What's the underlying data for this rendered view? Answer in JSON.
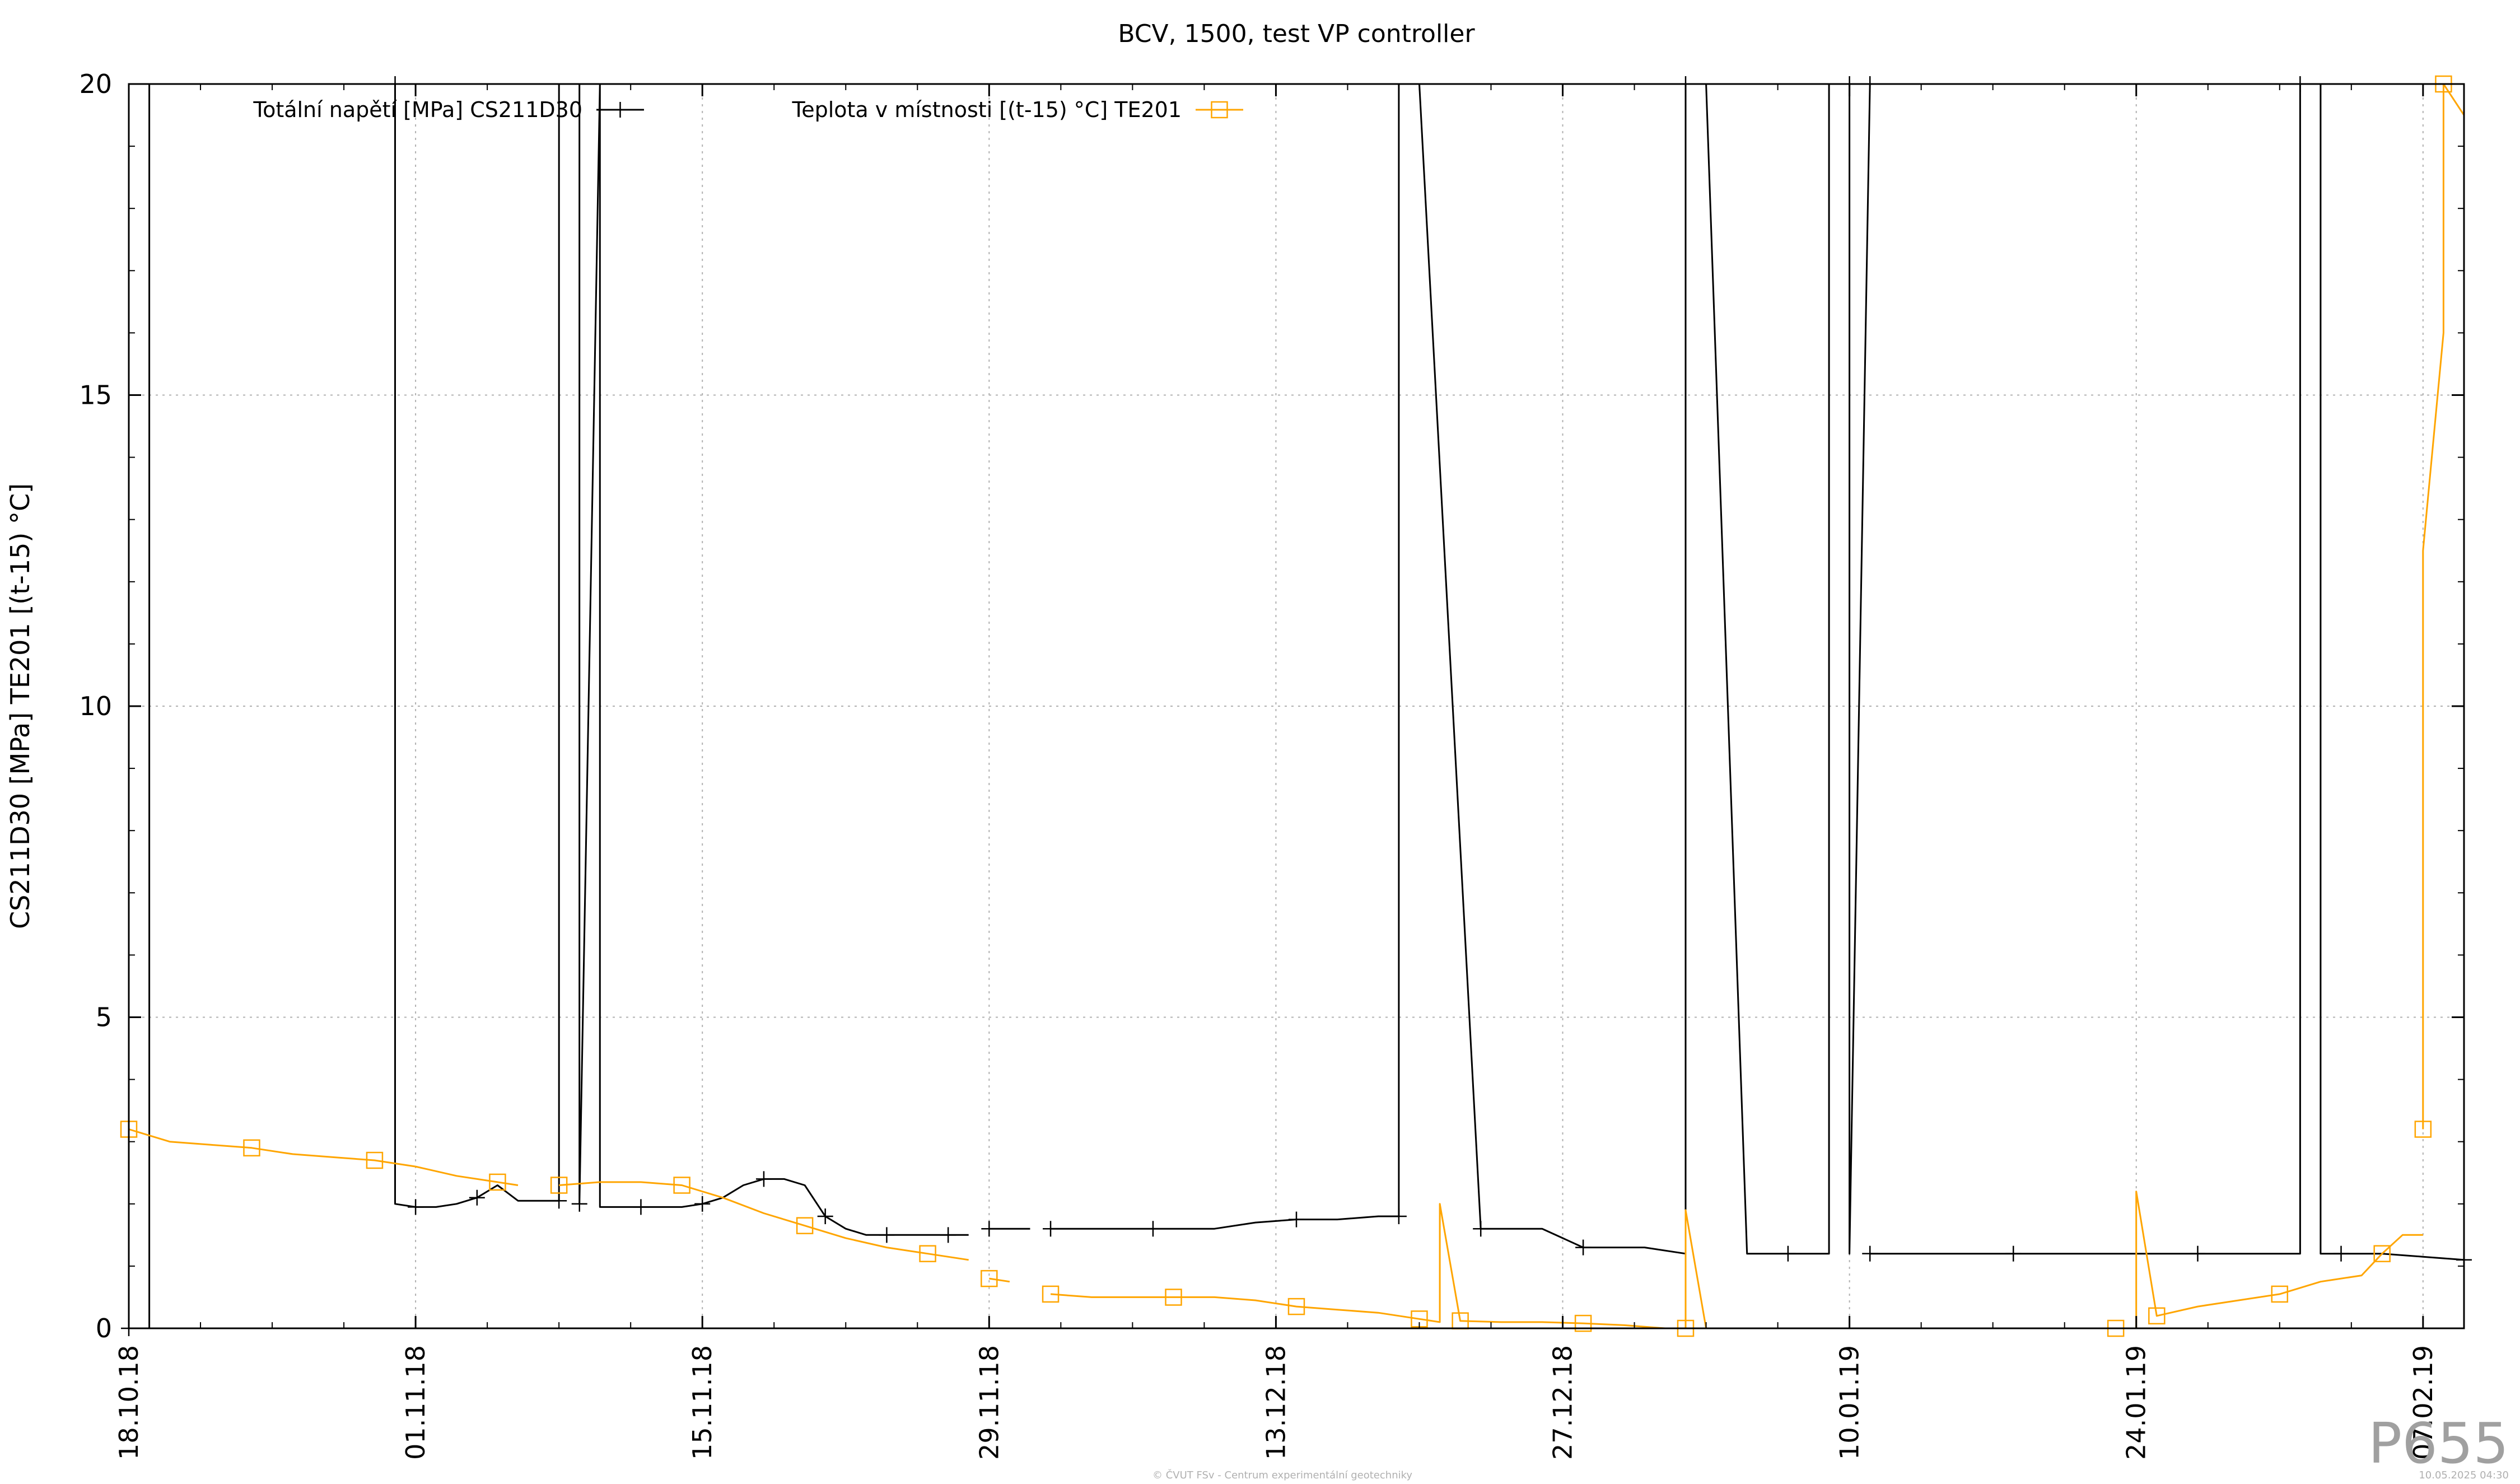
{
  "chart_data": {
    "type": "line",
    "title": "BCV, 1500, test VP controller",
    "ylabel": "CS211D30 [MPa] TE201 [(t-15) °C]",
    "xlabel": "",
    "ylim": [
      0,
      20
    ],
    "yticks": [
      0,
      5,
      10,
      15,
      20
    ],
    "xlim": [
      "2018-10-18",
      "2019-02-09"
    ],
    "xticks": [
      {
        "label": "18.10.18",
        "date": "2018-10-18"
      },
      {
        "label": "01.11.18",
        "date": "2018-11-01"
      },
      {
        "label": "15.11.18",
        "date": "2018-11-15"
      },
      {
        "label": "29.11.18",
        "date": "2018-11-29"
      },
      {
        "label": "13.12.18",
        "date": "2018-12-13"
      },
      {
        "label": "27.12.18",
        "date": "2018-12-27"
      },
      {
        "label": "10.01.19",
        "date": "2019-01-10"
      },
      {
        "label": "24.01.19",
        "date": "2019-01-24"
      },
      {
        "label": "07.02.19",
        "date": "2019-02-07"
      }
    ],
    "grid": true,
    "legend_position": "top",
    "series": [
      {
        "name": "Totální napětí [MPa] CS211D30",
        "color": "#000000",
        "marker": "plus",
        "x": [
          "2018-10-18",
          "2018-10-19",
          "2018-10-19",
          "2018-10-31",
          "2018-10-31",
          "2018-11-01",
          "2018-11-01",
          "2018-11-02",
          "2018-11-03",
          "2018-11-04",
          "2018-11-05",
          "2018-11-06",
          "2018-11-08",
          "2018-11-08",
          "2018-11-09",
          "2018-11-09",
          "2018-11-10",
          "2018-11-10",
          "2018-11-12",
          "2018-11-13",
          "2018-11-14",
          "2018-11-15",
          "2018-11-16",
          "2018-11-17",
          "2018-11-18",
          "2018-11-19",
          "2018-11-20",
          "2018-11-21",
          "2018-11-22",
          "2018-11-23",
          "2018-11-24",
          "2018-11-25",
          "2018-11-26",
          "2018-11-27",
          "2018-11-28"
        ],
        "values": [
          0,
          0,
          20,
          20,
          2.0,
          1.95,
          1.95,
          1.95,
          2.0,
          2.1,
          2.3,
          2.05,
          2.05,
          20,
          20,
          2.0,
          20,
          1.95,
          1.95,
          1.95,
          1.95,
          2.0,
          2.1,
          2.3,
          2.4,
          2.4,
          2.3,
          1.8,
          1.6,
          1.5,
          1.5,
          1.5,
          1.5,
          1.5,
          1.5
        ],
        "segments": [
          {
            "x": [
              "2018-11-29",
              "2018-11-30",
              "2018-12-01"
            ],
            "values": [
              1.6,
              1.6,
              1.6
            ]
          },
          {
            "x": [
              "2018-12-02",
              "2018-12-03",
              "2018-12-05",
              "2018-12-07",
              "2018-12-10",
              "2018-12-12",
              "2018-12-14",
              "2018-12-16",
              "2018-12-18",
              "2018-12-19",
              "2018-12-19",
              "2018-12-20",
              "2018-12-23",
              "2018-12-25",
              "2018-12-26",
              "2018-12-28",
              "2018-12-31",
              "2019-01-02",
              "2019-01-02",
              "2019-01-03",
              "2019-01-05",
              "2019-01-07",
              "2019-01-09",
              "2019-01-09",
              "2019-01-10",
              "2019-01-10",
              "2019-01-11",
              "2019-01-11"
            ],
            "values": [
              1.6,
              1.6,
              1.6,
              1.6,
              1.6,
              1.7,
              1.75,
              1.75,
              1.8,
              1.8,
              20,
              20,
              1.6,
              1.6,
              1.6,
              1.3,
              1.3,
              1.2,
              20,
              20,
              1.2,
              1.2,
              1.2,
              20,
              20,
              1.2,
              20,
              20
            ]
          },
          {
            "x": [
              "2019-01-11",
              "2019-01-13",
              "2019-01-15",
              "2019-01-18",
              "2019-01-21",
              "2019-01-24",
              "2019-01-27",
              "2019-01-30",
              "2019-02-01",
              "2019-02-01",
              "2019-02-02",
              "2019-02-02",
              "2019-02-03",
              "2019-02-05",
              "2019-02-07",
              "2019-02-09"
            ],
            "values": [
              1.2,
              1.2,
              1.2,
              1.2,
              1.2,
              1.2,
              1.2,
              1.2,
              1.2,
              20,
              20,
              1.2,
              1.2,
              1.2,
              1.15,
              1.1
            ]
          }
        ]
      },
      {
        "name": "Teplota v místnosti [(t-15) °C] TE201",
        "color": "#ffa500",
        "marker": "square",
        "segments": [
          {
            "x": [
              "2018-10-18",
              "2018-10-20",
              "2018-10-22",
              "2018-10-24",
              "2018-10-26",
              "2018-10-28",
              "2018-10-30",
              "2018-11-01",
              "2018-11-03",
              "2018-11-05",
              "2018-11-06"
            ],
            "values": [
              3.2,
              3.0,
              2.95,
              2.9,
              2.8,
              2.75,
              2.7,
              2.6,
              2.45,
              2.35,
              2.3
            ]
          },
          {
            "x": [
              "2018-11-08",
              "2018-11-10",
              "2018-11-12",
              "2018-11-14",
              "2018-11-16",
              "2018-11-18",
              "2018-11-20",
              "2018-11-22",
              "2018-11-24",
              "2018-11-26",
              "2018-11-28"
            ],
            "values": [
              2.3,
              2.35,
              2.35,
              2.3,
              2.1,
              1.85,
              1.65,
              1.45,
              1.3,
              1.2,
              1.1
            ]
          },
          {
            "x": [
              "2018-11-29",
              "2018-11-30"
            ],
            "values": [
              0.8,
              0.75
            ]
          },
          {
            "x": [
              "2018-12-02",
              "2018-12-04",
              "2018-12-06",
              "2018-12-08",
              "2018-12-10",
              "2018-12-12",
              "2018-12-14",
              "2018-12-16",
              "2018-12-18",
              "2018-12-20",
              "2018-12-21",
              "2018-12-21",
              "2018-12-22",
              "2018-12-24",
              "2018-12-26",
              "2018-12-28",
              "2018-12-30",
              "2019-01-01",
              "2019-01-02",
              "2019-01-02",
              "2019-01-03"
            ],
            "values": [
              0.55,
              0.5,
              0.5,
              0.5,
              0.5,
              0.45,
              0.35,
              0.3,
              0.25,
              0.15,
              0.1,
              2.0,
              0.12,
              0.1,
              0.1,
              0.08,
              0.05,
              0.0,
              0.0,
              1.9,
              0.0
            ]
          },
          {
            "x": [
              "2019-01-23",
              "2019-01-24",
              "2019-01-24",
              "2019-01-25",
              "2019-01-27",
              "2019-01-29",
              "2019-01-31",
              "2019-02-02",
              "2019-02-04",
              "2019-02-05",
              "2019-02-06",
              "2019-02-07"
            ],
            "values": [
              0.0,
              0.0,
              2.2,
              0.2,
              0.35,
              0.45,
              0.55,
              0.75,
              0.85,
              1.2,
              1.5,
              1.5
            ]
          },
          {
            "x": [
              "2019-02-07",
              "2019-02-07",
              "2019-02-08",
              "2019-02-08",
              "2019-02-09"
            ],
            "values": [
              3.2,
              12.5,
              16.0,
              20,
              19.5
            ]
          }
        ]
      }
    ]
  },
  "watermark": "P655",
  "footer": {
    "left": "© ČVUT FSv - Centrum experimentální geotechniky",
    "right": "10.05.2025 04:30"
  }
}
